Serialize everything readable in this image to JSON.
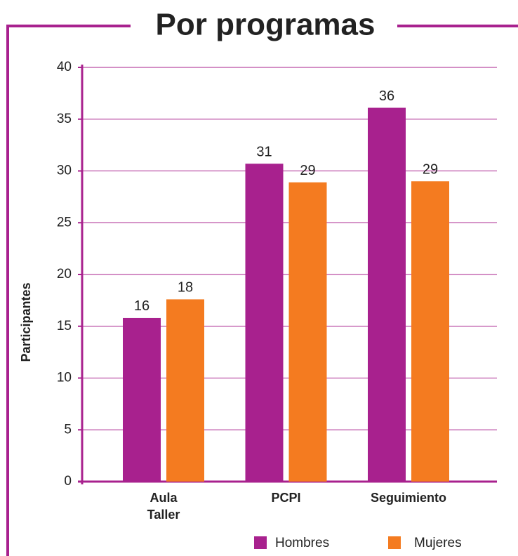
{
  "chart_data": {
    "type": "bar",
    "title": "Por programas",
    "y_label": "Participantes",
    "categories": [
      "Aula Taller",
      "PCPI",
      "Seguimiento"
    ],
    "series": [
      {
        "name": "Hombres",
        "color": "#a8218e",
        "values": [
          15.8,
          30.7,
          36.1
        ],
        "value_labels": [
          "16",
          "31",
          "36"
        ]
      },
      {
        "name": "Mujeres",
        "color": "#f47b20",
        "values": [
          17.6,
          28.9,
          29
        ],
        "value_labels": [
          "18",
          "29",
          "29"
        ]
      }
    ],
    "ylim": [
      0,
      40
    ],
    "yticks": [
      0,
      5,
      10,
      15,
      20,
      25,
      30,
      35,
      40
    ],
    "grid": true
  }
}
